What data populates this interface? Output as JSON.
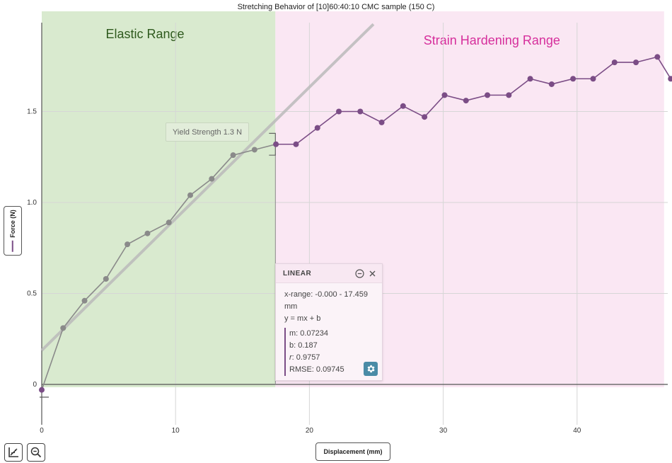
{
  "chart_data": {
    "type": "scatter",
    "title": "Stretching Behavior of [10]60:40:10 CMC sample (150 C)",
    "xlabel": "Displacement (mm)",
    "ylabel": "Force (N)",
    "xlim": [
      0,
      47
    ],
    "ylim": [
      -0.25,
      2.0
    ],
    "x_ticks": [
      0,
      10,
      20,
      30,
      40
    ],
    "y_ticks": [
      0,
      0.5,
      1.0,
      1.5
    ],
    "x_tick_labels": [
      "0",
      "10",
      "20",
      "30",
      "40"
    ],
    "y_tick_labels": [
      "0",
      "0.5",
      "1.0",
      "1.5"
    ],
    "grid": true,
    "series": [
      {
        "color": "#7b4d86",
        "x": [
          0.0,
          1.6,
          3.2,
          4.8,
          6.4,
          7.9,
          9.5,
          11.1,
          12.7,
          14.3,
          15.9,
          17.5,
          19.0,
          20.6,
          22.2,
          23.8,
          25.4,
          27.0,
          28.6,
          30.1,
          31.7,
          33.3,
          34.9,
          36.5,
          38.1,
          39.7,
          41.2,
          42.8,
          44.4,
          46.0,
          47.0
        ],
        "y": [
          -0.03,
          0.31,
          0.46,
          0.58,
          0.77,
          0.83,
          0.89,
          1.04,
          1.13,
          1.26,
          1.29,
          1.32,
          1.32,
          1.41,
          1.5,
          1.5,
          1.44,
          1.53,
          1.47,
          1.59,
          1.56,
          1.59,
          1.59,
          1.68,
          1.65,
          1.68,
          1.68,
          1.77,
          1.77,
          1.8,
          1.68
        ]
      }
    ],
    "fit_line": {
      "m": 0.07234,
      "b": 0.187,
      "color": "#bbbbbb"
    },
    "regions": [
      {
        "label": "Elastic Range",
        "x_range": [
          0,
          17.459
        ],
        "color": "#d9eacf",
        "label_color": "#2f5a1e"
      },
      {
        "label": "Strain Hardening Range",
        "x_range": [
          17.459,
          46.5
        ],
        "color": "#fae7f3",
        "label_color": "#d62f9c"
      }
    ],
    "annotations": [
      {
        "text": "Yield Strength 1.3 N",
        "x": 17.459,
        "y": 1.3
      }
    ]
  },
  "axis_buttons": {
    "x_label": "Displacement (mm)",
    "y_label": "Force (N)"
  },
  "linear_panel": {
    "title": "LINEAR",
    "x_range": "x-range: -0.000 - 17.459",
    "x_unit": "mm",
    "equation": "y = mx + b",
    "m": "m: 0.07234",
    "b": "b: 0.187",
    "r_label": "r",
    "r_value": ": 0.9757",
    "rmse": "RMSE: 0.09745"
  },
  "icons": {
    "graph_tool": "graph-icon",
    "zoom_tool": "zoom-out-icon",
    "minimize": "minus-circle-icon",
    "close": "close-icon",
    "settings": "gear-icon"
  }
}
